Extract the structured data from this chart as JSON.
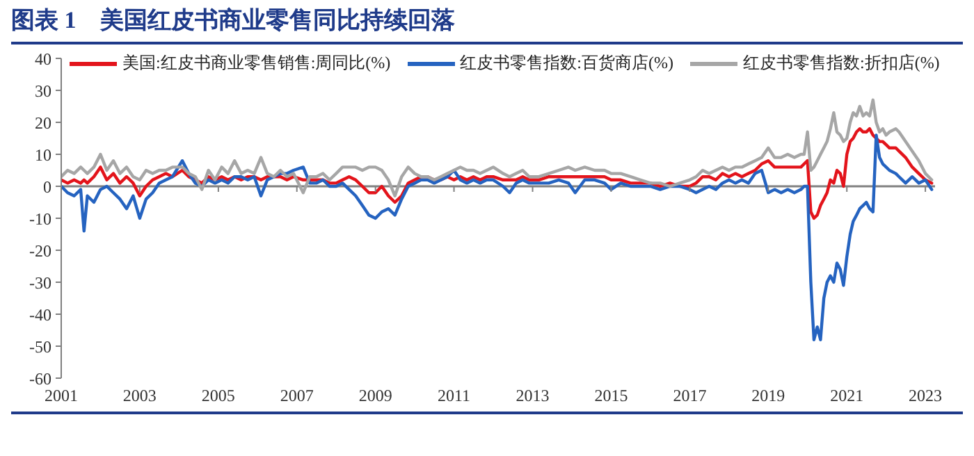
{
  "chart_data": {
    "type": "line",
    "title": "图表 1　美国红皮书商业零售同比持续回落",
    "x": [
      "2001-01",
      "2001-03",
      "2001-05",
      "2001-07",
      "2001-08",
      "2001-09",
      "2001-11",
      "2002-01",
      "2002-03",
      "2002-05",
      "2002-07",
      "2002-09",
      "2002-11",
      "2003-01",
      "2003-03",
      "2003-05",
      "2003-07",
      "2003-09",
      "2003-11",
      "2004-02",
      "2004-04",
      "2004-06",
      "2004-08",
      "2004-10",
      "2004-12",
      "2005-02",
      "2005-04",
      "2005-06",
      "2005-08",
      "2005-10",
      "2005-12",
      "2006-02",
      "2006-04",
      "2006-06",
      "2006-08",
      "2006-10",
      "2006-12",
      "2007-03",
      "2007-05",
      "2007-07",
      "2007-09",
      "2007-11",
      "2008-01",
      "2008-03",
      "2008-05",
      "2008-07",
      "2008-09",
      "2008-11",
      "2009-01",
      "2009-03",
      "2009-05",
      "2009-07",
      "2009-09",
      "2009-11",
      "2010-01",
      "2010-03",
      "2010-05",
      "2010-07",
      "2010-09",
      "2010-11",
      "2011-01",
      "2011-03",
      "2011-05",
      "2011-07",
      "2011-09",
      "2011-11",
      "2012-01",
      "2012-04",
      "2012-06",
      "2012-08",
      "2012-10",
      "2012-12",
      "2013-03",
      "2013-06",
      "2013-09",
      "2013-12",
      "2014-02",
      "2014-05",
      "2014-08",
      "2014-11",
      "2015-01",
      "2015-04",
      "2015-07",
      "2015-10",
      "2016-01",
      "2016-04",
      "2016-07",
      "2016-10",
      "2017-01",
      "2017-03",
      "2017-05",
      "2017-07",
      "2017-09",
      "2017-11",
      "2018-01",
      "2018-03",
      "2018-05",
      "2018-07",
      "2018-09",
      "2018-11",
      "2019-01",
      "2019-03",
      "2019-05",
      "2019-07",
      "2019-09",
      "2019-11",
      "2019-12",
      "2020-01",
      "2020-02",
      "2020-03",
      "2020-04",
      "2020-05",
      "2020-06",
      "2020-07",
      "2020-08",
      "2020-09",
      "2020-10",
      "2020-11",
      "2020-12",
      "2021-01",
      "2021-02",
      "2021-03",
      "2021-04",
      "2021-05",
      "2021-06",
      "2021-07",
      "2021-08",
      "2021-09",
      "2021-10",
      "2021-11",
      "2021-12",
      "2022-01",
      "2022-02",
      "2022-04",
      "2022-05",
      "2022-07",
      "2022-09",
      "2022-11",
      "2023-01",
      "2023-03"
    ],
    "series": [
      {
        "name": "美国:红皮书商业零售销售:周同比(%)",
        "color": "#e3141b",
        "values": [
          2,
          1,
          2,
          1,
          2,
          1,
          3,
          6,
          2,
          4,
          1,
          3,
          1,
          -3,
          0,
          2,
          3,
          4,
          3,
          5,
          3,
          2,
          1,
          3,
          2,
          3,
          2,
          3,
          2,
          3,
          3,
          2,
          3,
          3,
          3,
          2,
          3,
          2,
          2,
          2,
          2,
          1,
          1,
          2,
          3,
          2,
          0,
          -2,
          -2,
          0,
          -3,
          -5,
          -3,
          1,
          2,
          3,
          3,
          2,
          2,
          3,
          2,
          3,
          2,
          3,
          2,
          3,
          3,
          2,
          2,
          2,
          3,
          2,
          2,
          3,
          3,
          3,
          3,
          3,
          3,
          3,
          2,
          2,
          1,
          1,
          1,
          0,
          1,
          0,
          0,
          1,
          3,
          3,
          2,
          4,
          3,
          4,
          3,
          4,
          5,
          7,
          8,
          6,
          6,
          6,
          6,
          6,
          7,
          8,
          -8,
          -10,
          -9,
          -6,
          -4,
          -2,
          2,
          1,
          5,
          4,
          0,
          10,
          14,
          15,
          17,
          18,
          17,
          17,
          18,
          16,
          15,
          14,
          14,
          13,
          12,
          12,
          11,
          9,
          6,
          4,
          2,
          1
        ]
      },
      {
        "name": "红皮书零售指数:百货商店(%)",
        "color": "#2563c0",
        "values": [
          0,
          -2,
          -3,
          -1,
          -14,
          -3,
          -5,
          -1,
          0,
          -2,
          -4,
          -7,
          -3,
          -10,
          -4,
          -2,
          1,
          2,
          3,
          8,
          4,
          1,
          0,
          2,
          1,
          2,
          1,
          3,
          3,
          2,
          3,
          -3,
          2,
          3,
          4,
          4,
          5,
          6,
          1,
          1,
          2,
          0,
          0,
          1,
          -1,
          -3,
          -6,
          -9,
          -10,
          -8,
          -7,
          -9,
          -4,
          0,
          1,
          2,
          2,
          1,
          2,
          3,
          5,
          2,
          1,
          2,
          1,
          2,
          2,
          0,
          -2,
          1,
          2,
          1,
          1,
          1,
          2,
          1,
          -2,
          2,
          2,
          1,
          -1,
          1,
          0,
          0,
          0,
          -1,
          0,
          0,
          -1,
          -2,
          -1,
          0,
          -1,
          1,
          2,
          1,
          2,
          1,
          4,
          5,
          -2,
          -1,
          -2,
          -1,
          -2,
          -1,
          0,
          0,
          -30,
          -48,
          -44,
          -48,
          -35,
          -30,
          -28,
          -30,
          -24,
          -26,
          -31,
          -22,
          -15,
          -11,
          -9,
          -7,
          -6,
          -5,
          -7,
          -8,
          16,
          9,
          7,
          6,
          5,
          4,
          3,
          1,
          3,
          1,
          2,
          -1
        ]
      },
      {
        "name": "红皮书零售指数:折扣店(%)",
        "color": "#a6a6a6",
        "values": [
          3,
          5,
          4,
          6,
          5,
          4,
          6,
          10,
          5,
          8,
          4,
          6,
          3,
          2,
          5,
          4,
          5,
          5,
          6,
          6,
          4,
          3,
          -1,
          5,
          2,
          6,
          4,
          8,
          4,
          5,
          4,
          9,
          4,
          3,
          5,
          3,
          4,
          -2,
          3,
          3,
          4,
          2,
          4,
          6,
          6,
          6,
          5,
          6,
          6,
          5,
          2,
          -3,
          3,
          6,
          4,
          3,
          3,
          2,
          3,
          4,
          5,
          6,
          5,
          5,
          4,
          5,
          6,
          4,
          3,
          4,
          5,
          3,
          3,
          4,
          5,
          6,
          5,
          6,
          5,
          5,
          4,
          4,
          3,
          2,
          1,
          1,
          0,
          1,
          2,
          3,
          5,
          4,
          5,
          6,
          5,
          6,
          6,
          7,
          8,
          9,
          12,
          9,
          9,
          10,
          9,
          10,
          10,
          17,
          5,
          6,
          8,
          10,
          12,
          14,
          18,
          23,
          17,
          16,
          14,
          15,
          20,
          23,
          22,
          25,
          22,
          23,
          22,
          27,
          20,
          17,
          18,
          16,
          17,
          18,
          17,
          14,
          11,
          8,
          4,
          2
        ]
      }
    ],
    "xlim": [
      "2001-01",
      "2023-04"
    ],
    "xticks": [
      "2001",
      "2003",
      "2005",
      "2007",
      "2009",
      "2011",
      "2013",
      "2015",
      "2017",
      "2019",
      "2021",
      "2023"
    ],
    "ylim": [
      -60,
      40
    ],
    "yticks": [
      -60,
      -50,
      -40,
      -30,
      -20,
      -10,
      0,
      10,
      20,
      30,
      40
    ],
    "legend": "top",
    "marker": "none",
    "line_style": "solid"
  }
}
